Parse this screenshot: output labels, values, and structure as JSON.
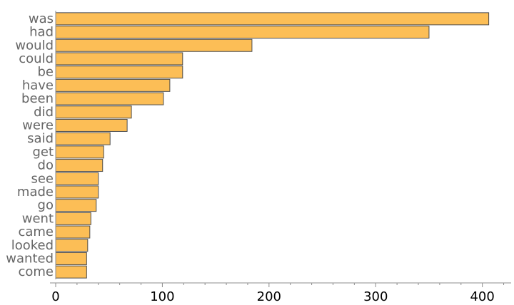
{
  "chart_data": {
    "type": "bar",
    "orientation": "horizontal",
    "categories": [
      "was",
      "had",
      "would",
      "could",
      "be",
      "have",
      "been",
      "did",
      "were",
      "said",
      "get",
      "do",
      "see",
      "made",
      "go",
      "went",
      "came",
      "looked",
      "wanted",
      "come"
    ],
    "values": [
      406,
      350,
      184,
      119,
      119,
      107,
      101,
      71,
      67,
      51,
      45,
      44,
      40,
      40,
      38,
      33,
      32,
      30,
      29,
      29
    ],
    "title": "",
    "xlabel": "",
    "ylabel": "",
    "xlim": [
      0,
      427
    ],
    "xticks": [
      0,
      100,
      200,
      300,
      400
    ],
    "tick_labels": [
      "0",
      "100",
      "200",
      "300",
      "400"
    ],
    "grid": false,
    "legend": "none",
    "colors": {
      "bar_fill": "#fcbe56",
      "bar_stroke": "#4d4d4d",
      "axis": "#8c8c8c",
      "category_text": "#666666",
      "tick_text": "#000000"
    }
  }
}
